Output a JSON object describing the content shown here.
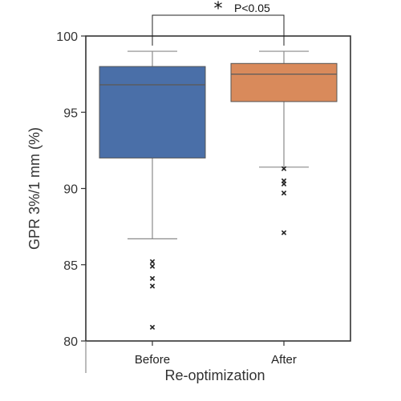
{
  "chart_data": {
    "type": "box",
    "title": "",
    "xlabel": "Re-optimization",
    "ylabel": "GPR 3%/1 mm (%)",
    "ylim": [
      80,
      100
    ],
    "yticks": [
      80,
      85,
      90,
      95,
      100
    ],
    "grid": false,
    "categories": [
      "Before",
      "After"
    ],
    "boxes": [
      {
        "category": "Before",
        "color": "#4a6fa8",
        "whisker_low": 86.7,
        "q1": 92.0,
        "median": 96.8,
        "q3": 98.0,
        "whisker_high": 99.0,
        "outliers": [
          85.2,
          84.9,
          84.1,
          83.6,
          80.9
        ]
      },
      {
        "category": "After",
        "color": "#d98a5b",
        "whisker_low": 91.4,
        "q1": 95.7,
        "median": 97.5,
        "q3": 98.2,
        "whisker_high": 99.0,
        "outliers": [
          91.3,
          90.5,
          90.3,
          89.7,
          87.1
        ]
      }
    ],
    "significance": {
      "star": "*",
      "label": "P<0.05"
    }
  }
}
